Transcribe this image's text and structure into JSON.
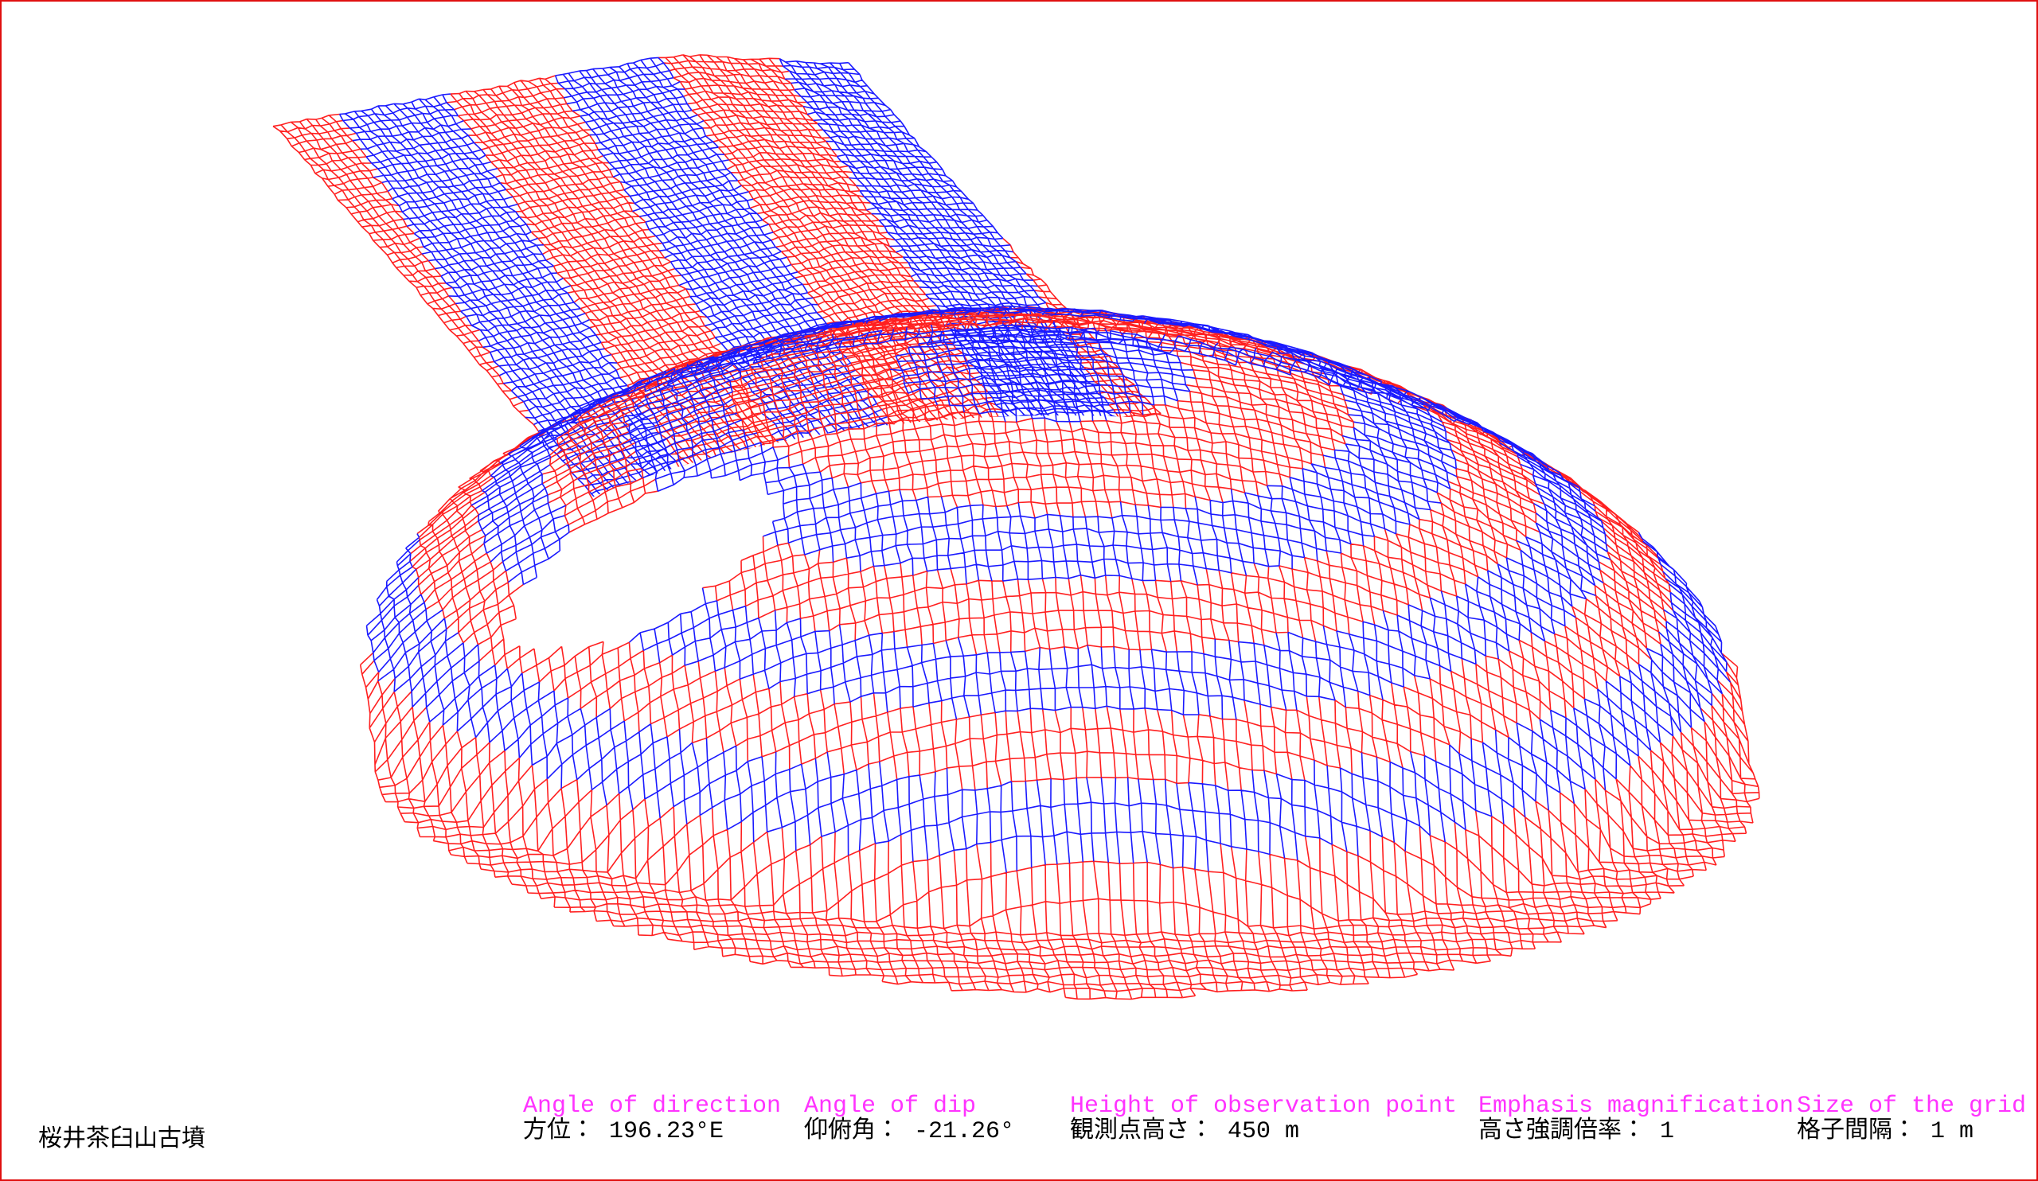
{
  "title": "桜井茶臼山古墳",
  "parameters": [
    {
      "label": "Angle of direction",
      "value": "方位： 196.23°E"
    },
    {
      "label": "Angle of dip",
      "value": "仰俯角： -21.26°"
    },
    {
      "label": "Height of observation point",
      "value": "観測点高さ： 450 m"
    },
    {
      "label": "Emphasis magnification",
      "value": "高さ強調倍率： 1"
    },
    {
      "label": "Size of the grid",
      "value": "格子間隔： 1 m"
    }
  ]
}
